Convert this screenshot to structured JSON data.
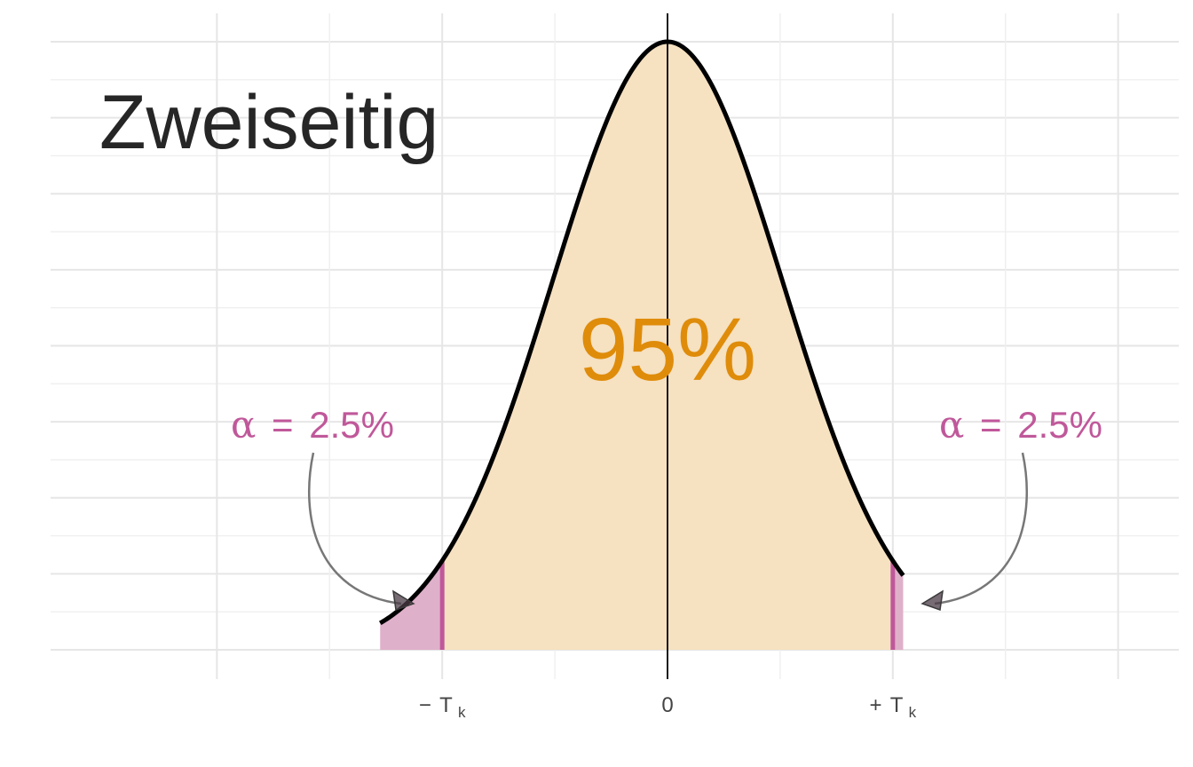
{
  "chart_data": {
    "type": "area",
    "title": "Zweiseitig",
    "distribution": "normal",
    "mean": 0,
    "sd": 1,
    "xlim": [
      -2.5,
      2.05
    ],
    "critical_value": 1.96,
    "x_ticks": [
      {
        "value": -1.96,
        "sign": "−",
        "main": "T",
        "sub": "k"
      },
      {
        "value": 0,
        "sign": "",
        "main": "0",
        "sub": ""
      },
      {
        "value": 1.96,
        "sign": "+",
        "main": "T",
        "sub": "k"
      }
    ],
    "regions": [
      {
        "name": "lower-tail",
        "from": -2.5,
        "to": -1.96,
        "color": "#dfb0ca"
      },
      {
        "name": "acceptance",
        "from": -1.96,
        "to": 1.96,
        "color": "#f6e1c1"
      },
      {
        "name": "upper-tail",
        "from": 1.96,
        "to": 2.05,
        "color": "#dfb0ca"
      }
    ],
    "center_label": "95%",
    "tail_labels": [
      {
        "symbol": "α",
        "eq": "=",
        "value": "2.5%"
      },
      {
        "symbol": "α",
        "eq": "=",
        "value": "2.5%"
      }
    ],
    "colors": {
      "curve": "#000000",
      "acceptance_fill": "#f6e1c1",
      "tail_fill": "#dfb0ca",
      "critical_line": "#c0589a",
      "tail_label": "#c0589a",
      "center_label": "#df8c0a",
      "arrow": "#777777",
      "grid": "#e6e6e6"
    },
    "grid": true
  }
}
